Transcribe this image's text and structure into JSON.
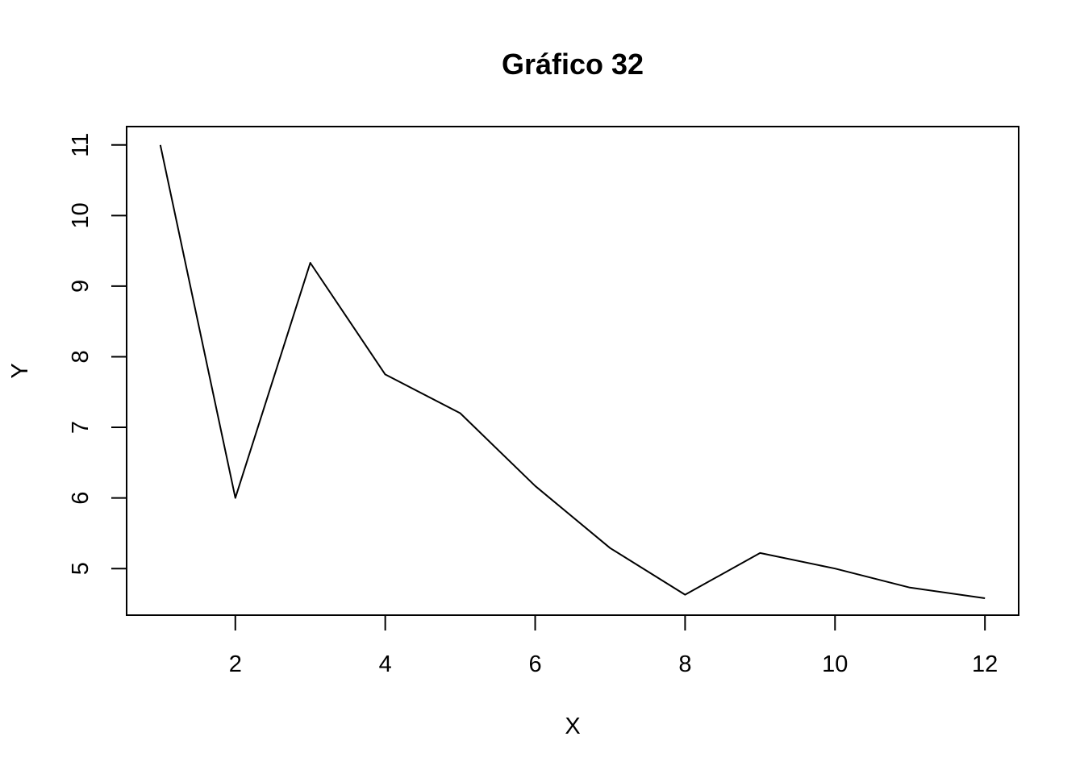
{
  "chart_data": {
    "type": "line",
    "title": "Gráfico 32",
    "xlabel": "X",
    "ylabel": "Y",
    "x": [
      1,
      2,
      3,
      4,
      5,
      6,
      7,
      8,
      9,
      10,
      11,
      12
    ],
    "series": [
      {
        "values": [
          11.0,
          6.0,
          9.33,
          7.75,
          7.2,
          6.17,
          5.29,
          4.63,
          5.22,
          5.0,
          4.73,
          4.58
        ]
      }
    ],
    "xlim": [
      0.55,
      12.45
    ],
    "ylim": [
      4.34,
      11.26
    ],
    "x_ticks": [
      2,
      4,
      6,
      8,
      10,
      12
    ],
    "y_ticks": [
      5,
      6,
      7,
      8,
      9,
      10,
      11
    ],
    "grid": false,
    "legend": "none",
    "colors": {
      "line": "#000000",
      "axes": "#000000",
      "background": "#ffffff"
    }
  }
}
